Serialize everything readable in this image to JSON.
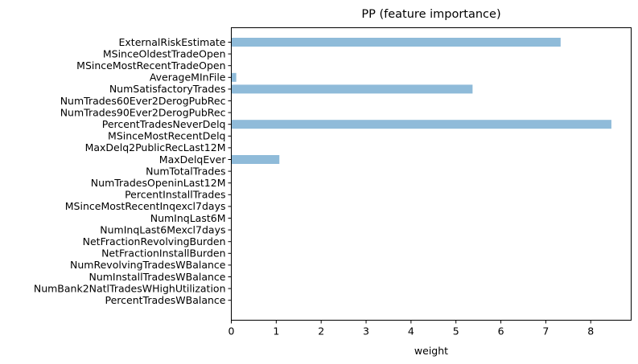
{
  "chart_data": {
    "type": "bar",
    "orientation": "horizontal",
    "title": "PP (feature importance)",
    "xlabel": "weight",
    "ylabel": "",
    "xlim": [
      0,
      8.9
    ],
    "xticks": [
      0,
      1,
      2,
      3,
      4,
      5,
      6,
      7,
      8
    ],
    "grid": false,
    "legend": "none",
    "bar_color": "#8fbbd9",
    "categories": [
      "ExternalRiskEstimate",
      "MSinceOldestTradeOpen",
      "MSinceMostRecentTradeOpen",
      "AverageMInFile",
      "NumSatisfactoryTrades",
      "NumTrades60Ever2DerogPubRec",
      "NumTrades90Ever2DerogPubRec",
      "PercentTradesNeverDelq",
      "MSinceMostRecentDelq",
      "MaxDelq2PublicRecLast12M",
      "MaxDelqEver",
      "NumTotalTrades",
      "NumTradesOpeninLast12M",
      "PercentInstallTrades",
      "MSinceMostRecentInqexcl7days",
      "NumInqLast6M",
      "NumInqLast6Mexcl7days",
      "NetFractionRevolvingBurden",
      "NetFractionInstallBurden",
      "NumRevolvingTradesWBalance",
      "NumInstallTradesWBalance",
      "NumBank2NatlTradesWHighUtilization",
      "PercentTradesWBalance"
    ],
    "values": [
      7.33,
      0,
      0,
      0.11,
      5.37,
      0,
      0,
      8.46,
      0,
      0,
      1.07,
      0,
      0,
      0,
      0,
      0,
      0,
      0,
      0,
      0,
      0,
      0,
      0
    ]
  }
}
